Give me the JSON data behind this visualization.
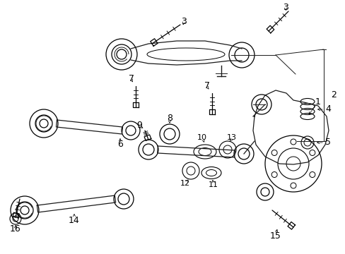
{
  "bg_color": "#ffffff",
  "line_color": "#1a1a1a",
  "text_color": "#000000",
  "fig_width": 4.89,
  "fig_height": 3.6,
  "dpi": 100,
  "label_fontsize": 9,
  "lw": 0.8
}
